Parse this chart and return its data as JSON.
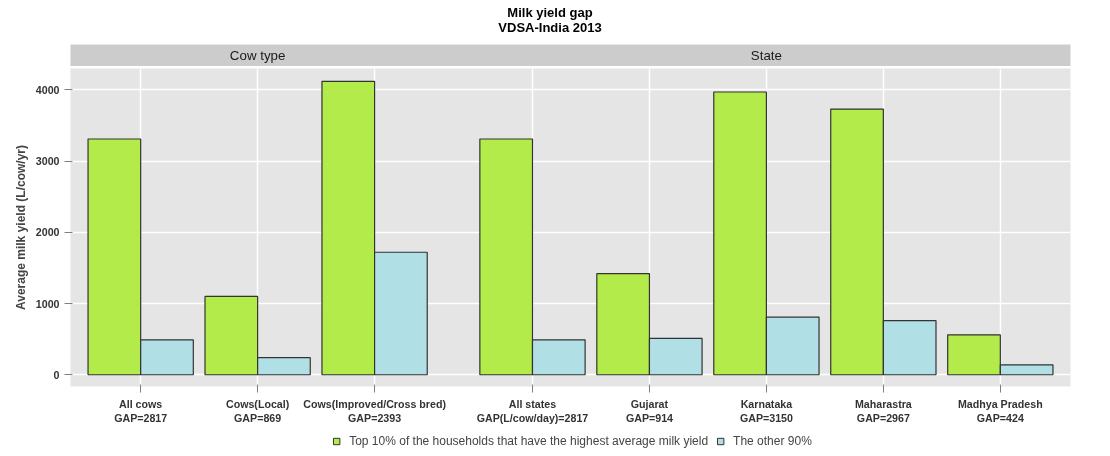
{
  "chart_data": {
    "type": "bar",
    "title": "Milk yield gap\nVDSA-India 2013",
    "ylabel": "Average milk yield (L/cow/yr)",
    "categories": [
      "All cows\nGAP=2817",
      "Cows(Local)\nGAP=869",
      "Cows(Improved/Cross bred)\nGAP=2393",
      "All states\nGAP(L/cow/day)=2817",
      "Gujarat\nGAP=914",
      "Karnataka\nGAP=3150",
      "Maharastra\nGAP=2967",
      "Madhya Pradesh\nGAP=424"
    ],
    "series": [
      {
        "name": "Top 10% of the households that have the highest average milk yield",
        "color": "#b3eb4a",
        "values": [
          3310,
          1100,
          4120,
          3310,
          1420,
          3970,
          3730,
          560
        ]
      },
      {
        "name": "The other 90%",
        "color": "#b0e0e6",
        "values": [
          490,
          240,
          1720,
          490,
          510,
          810,
          760,
          140
        ]
      }
    ],
    "annotations": [
      "Cow type",
      "State"
    ],
    "ylim": [
      -165,
      4300
    ],
    "yticks": [
      0,
      1000,
      2000,
      3000,
      4000
    ],
    "grid": true,
    "legend": "bottom"
  }
}
